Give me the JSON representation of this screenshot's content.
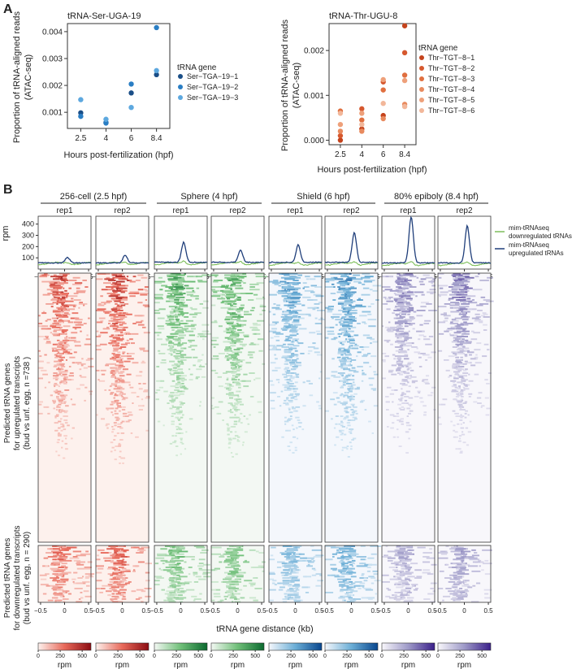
{
  "panel_a_label": "A",
  "panel_b_label": "B",
  "colors": {
    "ser": [
      "#1a4e87",
      "#2a7ec4",
      "#5da8df"
    ],
    "thr": [
      "#c4431c",
      "#d6582e",
      "#e06f3f",
      "#e88a5e",
      "#eea07a",
      "#f2b79a"
    ],
    "heat": {
      "red": [
        "#fdf1ed",
        "#e8695a",
        "#8c0c12"
      ],
      "green": [
        "#f3f8f3",
        "#6fbf78",
        "#0b6a2f"
      ],
      "blue": [
        "#f4f7fc",
        "#6baed6",
        "#08468e"
      ],
      "purple": [
        "#f8f7fb",
        "#9e9ac8",
        "#3a1f8a"
      ]
    },
    "line_up": "#1f3e7a",
    "line_down": "#7dbe5a"
  },
  "chart_data": [
    {
      "id": "ser",
      "type": "scatter",
      "title": "tRNA-Ser-UGA-19",
      "xlabel": "Hours post-fertilization (hpf)",
      "ylabel_line1": "Proportion of tRNA-aligned reads",
      "ylabel_line2": "(ATAC-seq)",
      "categories": [
        "2.5",
        "4",
        "6",
        "8.4"
      ],
      "ylim": [
        0.0004,
        0.0043
      ],
      "yticks": [
        "0.001",
        "0.002",
        "0.003",
        "0.004"
      ],
      "ytick_values": [
        0.001,
        0.002,
        0.003,
        0.004
      ],
      "legend_title": "tRNA gene",
      "series": [
        {
          "name": "Ser−TGA−19−1",
          "values": [
            0.00098,
            0.00062,
            0.00172,
            0.0024
          ]
        },
        {
          "name": "Ser−TGA−19−2",
          "values": [
            0.00085,
            0.0006,
            0.00205,
            0.00415
          ]
        },
        {
          "name": "Ser−TGA−19−3",
          "values": [
            0.00147,
            0.00074,
            0.00118,
            0.00255
          ]
        }
      ]
    },
    {
      "id": "thr",
      "type": "scatter",
      "title": "tRNA-Thr-UGU-8",
      "xlabel": "Hours post-fertilization (hpf)",
      "ylabel_line1": "Proportion of tRNA-aligned reads",
      "ylabel_line2": "(ATAC-seq)",
      "categories": [
        "2.5",
        "4",
        "6",
        "8.4"
      ],
      "ylim": [
        -0.0001,
        0.0026
      ],
      "yticks": [
        "0.000",
        "0.001",
        "0.002"
      ],
      "ytick_values": [
        0.0,
        0.001,
        0.002
      ],
      "legend_title": "tRNA gene",
      "series": [
        {
          "name": "Thr−TGT−8−1",
          "values": [
            0.0,
            0.00025,
            0.00055,
            0.00255
          ]
        },
        {
          "name": "Thr−TGT−8−2",
          "values": [
            0.0001,
            0.0007,
            0.0013,
            0.00195
          ]
        },
        {
          "name": "Thr−TGT−8−3",
          "values": [
            0.00065,
            0.00045,
            0.00112,
            0.00145
          ]
        },
        {
          "name": "Thr−TGT−8−4",
          "values": [
            0.0002,
            0.0002,
            0.00048,
            0.0008
          ]
        },
        {
          "name": "Thr−TGT−8−5",
          "values": [
            0.00035,
            0.0006,
            0.00135,
            0.00133
          ]
        },
        {
          "name": "Thr−TGT−8−6",
          "values": [
            0.0006,
            0.00035,
            0.00082,
            0.00075
          ]
        }
      ]
    },
    {
      "id": "profiles",
      "type": "line",
      "ylabel": "rpm",
      "ylim": [
        0,
        470
      ],
      "yticks": [
        "100",
        "200",
        "300",
        "400"
      ],
      "ytick_values": [
        100,
        200,
        300,
        400
      ],
      "xlim": [
        -0.55,
        0.55
      ],
      "xticks": [
        "−0.5",
        "0",
        "0.5"
      ],
      "xtick_values": [
        -0.5,
        0,
        0.5
      ],
      "stages": [
        "256-cell (2.5 hpf)",
        "Sphere (4 hpf)",
        "Shield (6 hpf)",
        "80% epiboly (8.4 hpf)"
      ],
      "replicates": [
        "rep1",
        "rep2"
      ],
      "panels": [
        {
          "up_base": 55,
          "up_peak": 105,
          "down_base": 50,
          "down_peak": 12
        },
        {
          "up_base": 55,
          "up_peak": 125,
          "down_base": 50,
          "down_peak": 14
        },
        {
          "up_base": 60,
          "up_peak": 240,
          "down_base": 48,
          "down_peak": 28
        },
        {
          "up_base": 60,
          "up_peak": 170,
          "down_base": 48,
          "down_peak": 24
        },
        {
          "up_base": 60,
          "up_peak": 215,
          "down_base": 45,
          "down_peak": 20
        },
        {
          "up_base": 60,
          "up_peak": 325,
          "down_base": 45,
          "down_peak": 26
        },
        {
          "up_base": 55,
          "up_peak": 465,
          "down_base": 42,
          "down_peak": 30
        },
        {
          "up_base": 55,
          "up_peak": 385,
          "down_base": 42,
          "down_peak": 28
        }
      ],
      "legend": [
        {
          "name_line1": "mim-tRNAseq",
          "name_line2": "downregulated tRNAs"
        },
        {
          "name_line1": "mim-tRNAseq",
          "name_line2": "upregulated tRNAs"
        }
      ]
    },
    {
      "id": "heatmaps",
      "type": "heatmap",
      "xlabel": "tRNA gene distance (kb)",
      "row_groups": [
        {
          "label_lines": [
            "Predicted tRNA genes",
            "for upregulated transcripts",
            "(bud vs unf. egg, n =738 )"
          ],
          "n": 738
        },
        {
          "label_lines": [
            "Predicted tRNA genes",
            "for downregulated transcripts",
            "(bud vs unf. egg, n = 290)"
          ],
          "n": 290
        }
      ],
      "panel_intensity": [
        0.8,
        0.85,
        0.75,
        0.75,
        0.7,
        0.8,
        0.7,
        0.75
      ],
      "colorbar_ticks": [
        "0",
        "250",
        "500"
      ],
      "colorbar_tick_values": [
        0,
        250,
        500
      ],
      "colorbar_max": 600,
      "colorbar_label": "rpm"
    }
  ]
}
